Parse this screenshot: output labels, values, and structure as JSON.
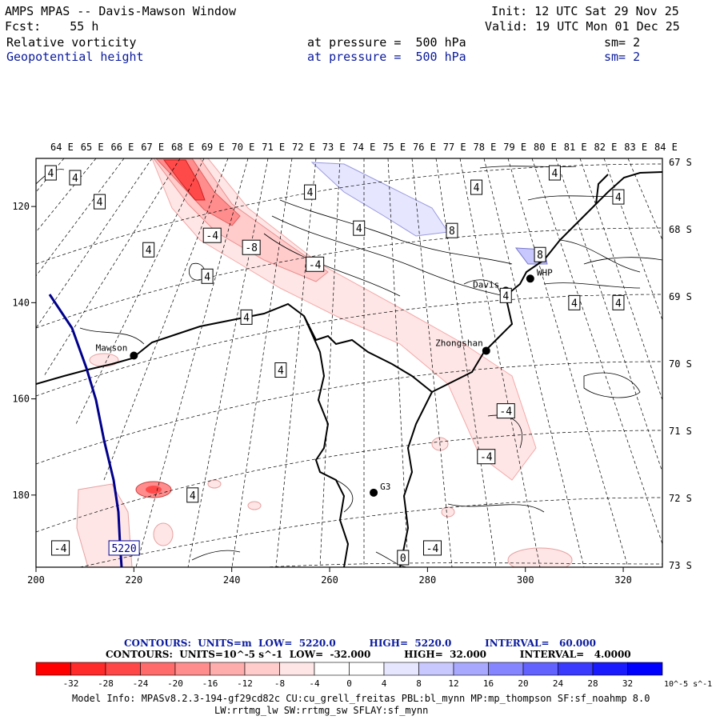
{
  "header": {
    "title": "AMPS MPAS -- Davis-Mawson Window",
    "init": "Init: 12 UTC Sat 29 Nov 25",
    "forecast": "Fcst:    55 h",
    "valid": "Valid: 19 UTC Mon 01 Dec 25",
    "field1": {
      "name": "Relative vorticity",
      "level": "at pressure =  500 hPa",
      "smooth": "sm= 2"
    },
    "field2": {
      "name": "Geopotential height",
      "level": "at pressure =  500 hPa",
      "smooth": "sm= 2"
    }
  },
  "chart_data": {
    "type": "contour-map",
    "title": "Relative vorticity / Geopotential height at 500 hPa",
    "longitude_labels": [
      "64 E",
      "65 E",
      "66 E",
      "67 E",
      "68 E",
      "69 E",
      "70 E",
      "71 E",
      "72 E",
      "73 E",
      "74 E",
      "75 E",
      "76 E",
      "77 E",
      "78 E",
      "79 E",
      "80 E",
      "81 E",
      "82 E",
      "83 E",
      "84 E"
    ],
    "latitude_labels": [
      "67 S",
      "68 S",
      "69 S",
      "70 S",
      "71 S",
      "72 S",
      "73 S"
    ],
    "x_ticks": [
      "200",
      "220",
      "240",
      "260",
      "280",
      "300",
      "320"
    ],
    "y_ticks": [
      "120",
      "140",
      "160",
      "180"
    ],
    "xlim": [
      200,
      328
    ],
    "ylim": [
      110,
      195
    ],
    "stations": [
      {
        "name": "Mawson",
        "x": 220,
        "y": 151
      },
      {
        "name": "Davis",
        "x": 296,
        "y": 137.5
      },
      {
        "name": "WHP",
        "x": 301,
        "y": 135
      },
      {
        "name": "Zhongshan",
        "x": 292,
        "y": 150
      },
      {
        "name": "G3",
        "x": 269,
        "y": 179.5
      }
    ],
    "contour_labels": [
      {
        "text": "4",
        "x": 203,
        "y": 113
      },
      {
        "text": "4",
        "x": 208,
        "y": 114
      },
      {
        "text": "4",
        "x": 213,
        "y": 119
      },
      {
        "text": "4",
        "x": 223,
        "y": 129
      },
      {
        "text": "4",
        "x": 235,
        "y": 134.5
      },
      {
        "text": "-4",
        "x": 236,
        "y": 126
      },
      {
        "text": "-8",
        "x": 244,
        "y": 128.5
      },
      {
        "text": "-4",
        "x": 257,
        "y": 132
      },
      {
        "text": "4",
        "x": 256,
        "y": 117
      },
      {
        "text": "4",
        "x": 266,
        "y": 124.5
      },
      {
        "text": "8",
        "x": 285,
        "y": 125
      },
      {
        "text": "4",
        "x": 290,
        "y": 116
      },
      {
        "text": "4",
        "x": 306,
        "y": 113
      },
      {
        "text": "4",
        "x": 319,
        "y": 118
      },
      {
        "text": "8",
        "x": 303,
        "y": 130
      },
      {
        "text": "4",
        "x": 296,
        "y": 138.5
      },
      {
        "text": "4",
        "x": 310,
        "y": 140
      },
      {
        "text": "4",
        "x": 319,
        "y": 140
      },
      {
        "text": "4",
        "x": 243,
        "y": 143
      },
      {
        "text": "4",
        "x": 250,
        "y": 154
      },
      {
        "text": "-4",
        "x": 296,
        "y": 162.5
      },
      {
        "text": "-4",
        "x": 292,
        "y": 172
      },
      {
        "text": "4",
        "x": 232,
        "y": 180
      },
      {
        "text": "-4",
        "x": 205,
        "y": 191
      },
      {
        "text": "0",
        "x": 275,
        "y": 193
      },
      {
        "text": "-4",
        "x": 281,
        "y": 191
      },
      {
        "text": "5220",
        "x": 218,
        "y": 191
      }
    ],
    "height_contour": {
      "units": "m",
      "low": "5220.0",
      "high": "5220.0",
      "interval": "60.000",
      "label": "5220"
    },
    "vorticity_contour": {
      "units": "10^-5 s^-1",
      "low": "-32.000",
      "high": "32.000",
      "interval": "4.0000"
    },
    "colorbar": {
      "levels": [
        "-32",
        "-28",
        "-24",
        "-20",
        "-16",
        "-12",
        "-8",
        "-4",
        "0",
        "4",
        "8",
        "12",
        "16",
        "20",
        "24",
        "28",
        "32"
      ],
      "colors": [
        "#ff0000",
        "#ff2a2a",
        "#ff4747",
        "#ff6a6a",
        "#ff8d8d",
        "#ffacac",
        "#ffcbcb",
        "#ffe6e6",
        "#ffffff",
        "#ffffff",
        "#e6e6ff",
        "#c8c8ff",
        "#a8a8ff",
        "#8585ff",
        "#6262ff",
        "#3a3aff",
        "#0000ff"
      ],
      "unit_label": "10^-5 s^-1"
    }
  },
  "legend": {
    "line1": "CONTOURS:  UNITS=m  LOW=  5220.0          HIGH=  5220.0          INTERVAL=   60.000",
    "line2": "CONTOURS:  UNITS=10^-5 s^-1  LOW=  -32.000          HIGH=  32.000          INTERVAL=   4.0000"
  },
  "footer": {
    "line1": "Model Info: MPASv8.2.3-194-gf29cd82c CU:cu_grell_freitas PBL:bl_mynn MP:mp_thompson SF:sf_noahmp 8.0",
    "line2": "LW:rrtmg_lw SW:rrtmg_sw SFLAY:sf_mynn"
  },
  "colors": {
    "text_blue": "#0a1a9c",
    "coast": "#000000",
    "contour_blue_line": "#00008b"
  }
}
